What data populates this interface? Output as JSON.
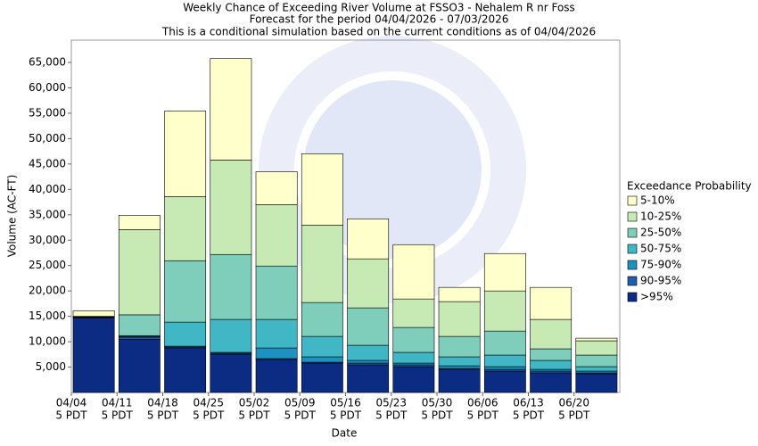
{
  "chart_data": {
    "type": "stacked_bar",
    "title": "Weekly Chance of Exceeding River Volume at FSSO3 - Nehalem R nr Foss",
    "subtitle": "Forecast for the period 04/04/2026 - 07/03/2026",
    "subtitle2": "This is a conditional simulation based on the current conditions as of 04/04/2026",
    "y_label": "Volume (AC-FT)",
    "x_label": "Date",
    "legend_title": "Exceedance Probability",
    "categories": [
      "04/04",
      "04/11",
      "04/18",
      "04/25",
      "05/02",
      "05/09",
      "05/16",
      "05/23",
      "05/30",
      "06/06",
      "06/13",
      "06/20"
    ],
    "category_sublabel": "5 PDT",
    "series": [
      {
        "name": ">95%",
        "color": "#0c2c84",
        "values": [
          14700,
          10500,
          8770,
          7540,
          6490,
          5790,
          5440,
          5090,
          4560,
          4210,
          3860,
          3680
        ]
      },
      {
        "name": "90-95%",
        "color": "#225ea8",
        "values": [
          50,
          400,
          180,
          180,
          180,
          170,
          350,
          350,
          180,
          350,
          350,
          180
        ]
      },
      {
        "name": "75-90%",
        "color": "#1d91c0",
        "values": [
          50,
          150,
          170,
          180,
          2100,
          1060,
          530,
          350,
          520,
          530,
          350,
          350
        ]
      },
      {
        "name": "50-75%",
        "color": "#41b6c4",
        "values": [
          50,
          150,
          4740,
          6490,
          5620,
          4030,
          2980,
          2110,
          1760,
          2280,
          1760,
          880
        ]
      },
      {
        "name": "25-50%",
        "color": "#7fcdbb",
        "values": [
          50,
          4100,
          12100,
          12800,
          10520,
          6670,
          7370,
          4910,
          4030,
          4730,
          2280,
          2280
        ]
      },
      {
        "name": "10-25%",
        "color": "#c7e9b4",
        "values": [
          100,
          16800,
          12640,
          18600,
          12110,
          15260,
          9650,
          5610,
          6850,
          7900,
          5790,
          2810
        ]
      },
      {
        "name": "5-10%",
        "color": "#ffffcc",
        "values": [
          1100,
          2800,
          16840,
          20000,
          6490,
          14040,
          7890,
          10700,
          2800,
          7370,
          6310,
          520
        ]
      }
    ],
    "ylim": [
      0,
      69400
    ],
    "yticks": [
      {
        "value": 5000,
        "label": "5,000"
      },
      {
        "value": 10000,
        "label": "10,000"
      },
      {
        "value": 15000,
        "label": "15,000"
      },
      {
        "value": 20000,
        "label": "20,000"
      },
      {
        "value": 25000,
        "label": "25,000"
      },
      {
        "value": 30000,
        "label": "30,000"
      },
      {
        "value": 35000,
        "label": "35,000"
      },
      {
        "value": 40000,
        "label": "40,000"
      },
      {
        "value": 45000,
        "label": "45,000"
      },
      {
        "value": 50000,
        "label": "50,000"
      },
      {
        "value": 55000,
        "label": "55,000"
      },
      {
        "value": 60000,
        "label": "60,000"
      },
      {
        "value": 65000,
        "label": "65,000"
      }
    ],
    "grid": false
  }
}
